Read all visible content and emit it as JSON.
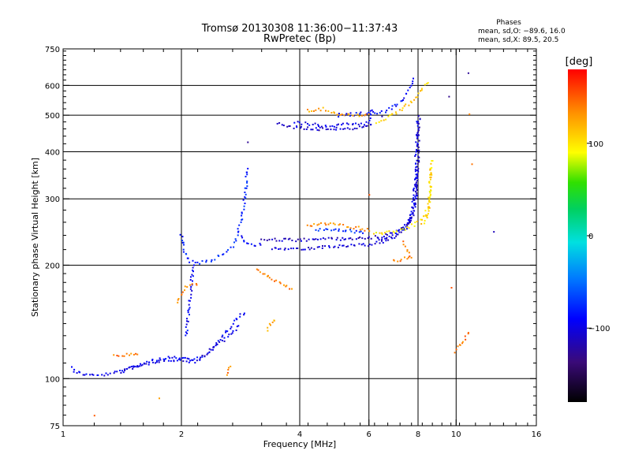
{
  "chart_data": {
    "type": "scatter",
    "title": "Tromsø 20130308 11:36:00−11:37:43",
    "subtitle": "RwPretec (Bp)",
    "xlabel": "Frequency [MHz]",
    "ylabel": "Stationary phase Virtual Height [km]",
    "x_scale": "log",
    "y_scale": "log",
    "xlim": [
      1,
      16
    ],
    "ylim": [
      75,
      750
    ],
    "x_ticks": [
      1,
      2,
      4,
      6,
      8,
      10,
      16
    ],
    "x_tick_labels": [
      "1",
      "2",
      "4",
      "6",
      "8",
      "10",
      "16"
    ],
    "y_ticks": [
      75,
      100,
      200,
      300,
      400,
      500,
      600,
      750
    ],
    "y_tick_labels": [
      "75",
      "100",
      "200",
      "300",
      "400",
      "500",
      "600",
      "750"
    ],
    "x_gridlines": [
      2,
      4,
      6,
      8,
      10
    ],
    "y_gridlines": [
      100,
      200,
      300,
      400,
      500,
      600
    ],
    "grid": true,
    "phase_stats": {
      "heading": "Phases",
      "o_line": "mean, sd,O: −89.6, 16.0",
      "x_line": "mean, sd,X:  89.5, 20.5"
    },
    "colorbar": {
      "label": "[deg]",
      "range": [
        -180,
        180
      ],
      "ticks": [
        -100,
        0,
        100
      ],
      "tick_labels": [
        "−100",
        "0",
        "100"
      ]
    },
    "traces": [
      {
        "phase": -95,
        "points": [
          [
            1.05,
            107
          ],
          [
            1.08,
            104
          ],
          [
            1.12,
            103
          ],
          [
            1.18,
            102
          ],
          [
            1.25,
            102
          ],
          [
            1.32,
            103
          ],
          [
            1.38,
            104
          ],
          [
            1.45,
            106
          ],
          [
            1.52,
            108
          ],
          [
            1.6,
            110
          ],
          [
            1.7,
            112
          ],
          [
            1.8,
            113
          ],
          [
            1.9,
            114
          ],
          [
            2.0,
            113
          ],
          [
            2.1,
            112
          ],
          [
            2.2,
            113
          ],
          [
            2.3,
            115
          ],
          [
            2.4,
            120
          ],
          [
            2.5,
            127
          ],
          [
            2.6,
            133
          ],
          [
            2.7,
            140
          ],
          [
            2.8,
            146
          ],
          [
            2.9,
            150
          ]
        ]
      },
      {
        "phase": -100,
        "points": [
          [
            1.4,
            104
          ],
          [
            1.5,
            107
          ],
          [
            1.6,
            109
          ],
          [
            1.75,
            111
          ],
          [
            1.9,
            112
          ],
          [
            2.05,
            111
          ],
          [
            2.2,
            111
          ],
          [
            2.35,
            118
          ],
          [
            2.5,
            124
          ],
          [
            2.65,
            130
          ],
          [
            2.8,
            138
          ]
        ]
      },
      {
        "phase": -92,
        "points": [
          [
            2.05,
            130
          ],
          [
            2.08,
            145
          ],
          [
            2.1,
            160
          ],
          [
            2.12,
            175
          ],
          [
            2.13,
            190
          ],
          [
            2.15,
            200
          ]
        ]
      },
      {
        "phase": -80,
        "points": [
          [
            2.0,
            240
          ],
          [
            2.02,
            225
          ],
          [
            2.05,
            212
          ],
          [
            2.1,
            205
          ],
          [
            2.2,
            203
          ],
          [
            2.3,
            204
          ],
          [
            2.4,
            207
          ],
          [
            2.5,
            212
          ],
          [
            2.6,
            218
          ],
          [
            2.7,
            225
          ],
          [
            2.75,
            232
          ],
          [
            2.8,
            250
          ],
          [
            2.85,
            270
          ],
          [
            2.9,
            300
          ],
          [
            2.95,
            360
          ]
        ]
      },
      {
        "phase": -85,
        "points": [
          [
            2.85,
            240
          ],
          [
            2.9,
            230
          ],
          [
            3.0,
            226
          ],
          [
            3.1,
            225
          ],
          [
            3.2,
            228
          ]
        ]
      },
      {
        "phase": -110,
        "points": [
          [
            3.2,
            235
          ],
          [
            3.4,
            234
          ],
          [
            3.6,
            233
          ],
          [
            3.8,
            233
          ],
          [
            4.0,
            233
          ],
          [
            4.3,
            234
          ],
          [
            4.6,
            235
          ],
          [
            5.0,
            235
          ],
          [
            5.4,
            235
          ],
          [
            5.8,
            236
          ],
          [
            6.2,
            237
          ],
          [
            6.6,
            240
          ],
          [
            7.0,
            245
          ],
          [
            7.3,
            252
          ],
          [
            7.6,
            262
          ],
          [
            7.8,
            280
          ],
          [
            7.9,
            300
          ],
          [
            7.95,
            330
          ],
          [
            8.0,
            380
          ],
          [
            8.02,
            440
          ],
          [
            8.05,
            500
          ]
        ]
      },
      {
        "phase": -105,
        "points": [
          [
            3.4,
            222
          ],
          [
            3.8,
            221
          ],
          [
            4.2,
            222
          ],
          [
            4.6,
            223
          ],
          [
            5.0,
            224
          ],
          [
            5.4,
            225
          ],
          [
            5.8,
            226
          ],
          [
            6.2,
            228
          ],
          [
            6.6,
            232
          ],
          [
            7.0,
            238
          ],
          [
            7.4,
            248
          ],
          [
            7.7,
            262
          ],
          [
            7.85,
            290
          ],
          [
            7.95,
            330
          ],
          [
            8.0,
            360
          ]
        ]
      },
      {
        "phase": -95,
        "points": [
          [
            6.4,
            235
          ],
          [
            6.6,
            237
          ],
          [
            6.9,
            240
          ],
          [
            7.2,
            246
          ],
          [
            7.5,
            258
          ],
          [
            7.7,
            275
          ],
          [
            7.8,
            300
          ],
          [
            7.85,
            330
          ],
          [
            7.9,
            370
          ],
          [
            7.95,
            420
          ],
          [
            7.98,
            480
          ]
        ]
      },
      {
        "phase": 100,
        "points": [
          [
            6.2,
            242
          ],
          [
            6.6,
            243
          ],
          [
            7.0,
            246
          ],
          [
            7.4,
            250
          ],
          [
            7.8,
            256
          ],
          [
            8.1,
            262
          ],
          [
            8.3,
            270
          ],
          [
            8.45,
            282
          ],
          [
            8.55,
            300
          ],
          [
            8.6,
            330
          ],
          [
            8.65,
            360
          ],
          [
            8.7,
            380
          ]
        ]
      },
      {
        "phase": 110,
        "points": [
          [
            8.2,
            255
          ],
          [
            8.4,
            265
          ],
          [
            8.5,
            280
          ],
          [
            8.55,
            300
          ],
          [
            8.58,
            330
          ],
          [
            8.6,
            360
          ]
        ]
      },
      {
        "phase": 135,
        "points": [
          [
            4.2,
            256
          ],
          [
            4.5,
            257
          ],
          [
            4.8,
            257
          ],
          [
            5.1,
            256
          ],
          [
            5.4,
            253
          ],
          [
            5.7,
            250
          ],
          [
            6.0,
            248
          ]
        ]
      },
      {
        "phase": -75,
        "points": [
          [
            4.4,
            248
          ],
          [
            4.8,
            248
          ],
          [
            5.2,
            248
          ],
          [
            5.5,
            245
          ],
          [
            5.8,
            243
          ]
        ]
      },
      {
        "phase": -105,
        "points": [
          [
            3.5,
            475
          ],
          [
            3.7,
            468
          ],
          [
            3.9,
            465
          ],
          [
            4.1,
            463
          ],
          [
            4.4,
            460
          ],
          [
            4.8,
            460
          ],
          [
            5.2,
            461
          ],
          [
            5.6,
            462
          ],
          [
            5.9,
            465
          ],
          [
            6.1,
            470
          ]
        ]
      },
      {
        "phase": -98,
        "points": [
          [
            3.9,
            478
          ],
          [
            4.3,
            472
          ],
          [
            4.7,
            470
          ],
          [
            5.1,
            471
          ],
          [
            5.5,
            473
          ],
          [
            5.9,
            476
          ],
          [
            6.0,
            480
          ],
          [
            6.05,
            500
          ],
          [
            6.1,
            520
          ]
        ]
      },
      {
        "phase": -90,
        "points": [
          [
            5.0,
            500
          ],
          [
            5.5,
            503
          ],
          [
            6.0,
            505
          ],
          [
            6.5,
            510
          ],
          [
            6.9,
            525
          ],
          [
            7.2,
            540
          ],
          [
            7.4,
            560
          ],
          [
            7.6,
            590
          ],
          [
            7.8,
            620
          ]
        ]
      },
      {
        "phase": 110,
        "points": [
          [
            6.3,
            480
          ],
          [
            6.6,
            490
          ],
          [
            7.0,
            505
          ],
          [
            7.4,
            525
          ],
          [
            7.8,
            550
          ],
          [
            8.1,
            575
          ],
          [
            8.3,
            600
          ],
          [
            8.45,
            615
          ]
        ]
      },
      {
        "phase": 125,
        "points": [
          [
            4.2,
            515
          ],
          [
            4.6,
            520
          ],
          [
            5.0,
            505
          ],
          [
            5.5,
            498
          ],
          [
            6.0,
            500
          ]
        ]
      },
      {
        "phase": 120,
        "points": [
          [
            3.3,
            135
          ],
          [
            3.35,
            138
          ],
          [
            3.4,
            141
          ],
          [
            3.45,
            144
          ]
        ]
      },
      {
        "phase": 140,
        "points": [
          [
            1.2,
            79
          ],
          [
            1.35,
            115
          ],
          [
            1.55,
            117
          ],
          [
            1.75,
            88
          ],
          [
            1.95,
            160
          ],
          [
            2.05,
            175
          ],
          [
            2.2,
            178
          ],
          [
            2.6,
            103
          ],
          [
            2.65,
            108
          ],
          [
            3.1,
            195
          ],
          [
            3.8,
            173
          ],
          [
            6.0,
            310
          ],
          [
            6.9,
            205
          ],
          [
            7.7,
            210
          ],
          [
            7.3,
            230
          ],
          [
            9.8,
            175
          ],
          [
            9.9,
            118
          ],
          [
            10.8,
            132
          ],
          [
            10.8,
            500
          ],
          [
            11.0,
            370
          ]
        ]
      },
      {
        "phase": -120,
        "points": [
          [
            10.8,
            650
          ],
          [
            12.5,
            245
          ],
          [
            9.6,
            560
          ],
          [
            2.95,
            420
          ],
          [
            6.5,
            500
          ],
          [
            4.5,
            460
          ]
        ]
      }
    ]
  }
}
